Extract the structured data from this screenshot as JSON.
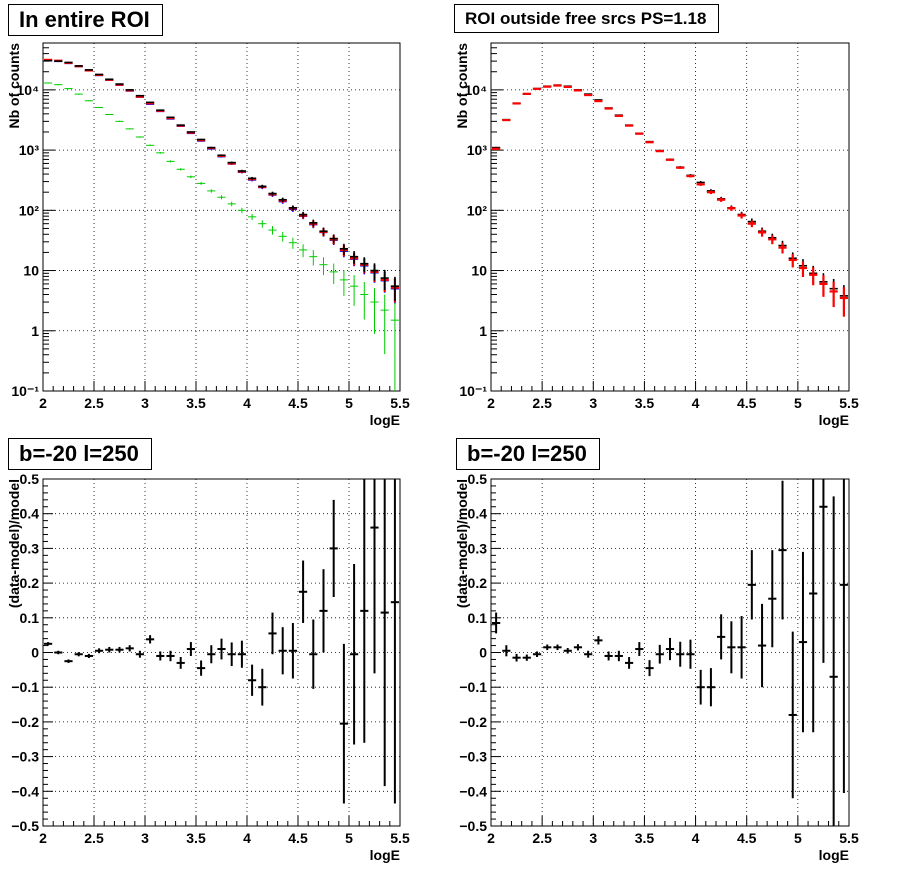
{
  "panels": [
    {
      "title": "In entire ROI",
      "ylabel": "Nb of counts",
      "xlabel": "logE",
      "xticks": [
        "2",
        "2.5",
        "3",
        "3.5",
        "4",
        "4.5",
        "5",
        "5.5"
      ],
      "yticks": [
        "10⁻¹",
        "1",
        "10",
        "10²",
        "10³",
        "10⁴"
      ]
    },
    {
      "title": "ROI outside free srcs PS=1.18",
      "ylabel": "Nb of counts",
      "xlabel": "logE",
      "xticks": [
        "2",
        "2.5",
        "3",
        "3.5",
        "4",
        "4.5",
        "5",
        "5.5"
      ],
      "yticks": [
        "10⁻¹",
        "1",
        "10",
        "10²",
        "10³",
        "10⁴"
      ]
    },
    {
      "title": "b=-20 l=250",
      "ylabel": "(data-model)/model",
      "xlabel": "logE",
      "xticks": [
        "2",
        "2.5",
        "3",
        "3.5",
        "4",
        "4.5",
        "5",
        "5.5"
      ],
      "yticks": [
        "−0.5",
        "−0.4",
        "−0.3",
        "−0.2",
        "−0.1",
        "0",
        "0.1",
        "0.2",
        "0.3",
        "0.4",
        "0.5"
      ]
    },
    {
      "title": "b=-20 l=250",
      "ylabel": "(data-model)/model",
      "xlabel": "logE",
      "xticks": [
        "2",
        "2.5",
        "3",
        "3.5",
        "4",
        "4.5",
        "5",
        "5.5"
      ],
      "yticks": [
        "−0.5",
        "−0.4",
        "−0.3",
        "−0.2",
        "−0.1",
        "0",
        "0.1",
        "0.2",
        "0.3",
        "0.4",
        "0.5"
      ]
    }
  ],
  "colors": {
    "data": "#000000",
    "model": "#ff0000",
    "total": "#0000ff",
    "component": "#00cc00"
  },
  "chart_data": [
    {
      "type": "scatter",
      "title": "In entire ROI",
      "xlabel": "logE",
      "ylabel": "Nb of counts",
      "xlim": [
        2,
        5.5
      ],
      "ylim": [
        0.1,
        60000
      ],
      "yscale": "log",
      "grid": true,
      "bin_width": 0.1,
      "x": [
        2.05,
        2.15,
        2.25,
        2.35,
        2.45,
        2.55,
        2.65,
        2.75,
        2.85,
        2.95,
        3.05,
        3.15,
        3.25,
        3.35,
        3.45,
        3.55,
        3.65,
        3.75,
        3.85,
        3.95,
        4.05,
        4.15,
        4.25,
        4.35,
        4.45,
        4.55,
        4.65,
        4.75,
        4.85,
        4.95,
        5.05,
        5.15,
        5.25,
        5.35,
        5.45
      ],
      "series": [
        {
          "values": [
            30500,
            30000,
            28500,
            25000,
            21500,
            18000,
            15000,
            12500,
            10000,
            8000,
            6200,
            4600,
            3500,
            2600,
            2000,
            1500,
            1100,
            820,
            620,
            450,
            340,
            250,
            190,
            150,
            110,
            85,
            62,
            45,
            34,
            23,
            17,
            13,
            10,
            7.5,
            5.5
          ]
        },
        {
          "values": [
            31500,
            30500,
            28000,
            24700,
            21000,
            17700,
            14700,
            12200,
            9800,
            7700,
            6000,
            4500,
            3400,
            2550,
            1950,
            1460,
            1080,
            800,
            600,
            440,
            330,
            245,
            185,
            145,
            108,
            82,
            60,
            44,
            33,
            22,
            16,
            12.5,
            9.5,
            7,
            5.2
          ]
        },
        {
          "values": [
            30500,
            29800,
            27600,
            24500,
            20800,
            17400,
            14500,
            12000,
            9600,
            7600,
            5800,
            4400,
            3300,
            2500,
            1900,
            1420,
            1050,
            780,
            590,
            430,
            320,
            240,
            180,
            140,
            104,
            80,
            58,
            43,
            32,
            21,
            15.5,
            12,
            9.2,
            6.8,
            5
          ]
        },
        {
          "values": [
            13000,
            12200,
            10500,
            8500,
            6600,
            5100,
            3900,
            3000,
            2250,
            1650,
            1200,
            900,
            650,
            480,
            360,
            280,
            210,
            165,
            128,
            100,
            78,
            60,
            47,
            37,
            29,
            22,
            17,
            12.5,
            9.5,
            7,
            5.5,
            4,
            3,
            2.2,
            1.5
          ]
        }
      ],
      "errors_rel": [
        0.01,
        0.01,
        0.01,
        0.01,
        0.01,
        0.01,
        0.01,
        0.01,
        0.01,
        0.012,
        0.013,
        0.015,
        0.017,
        0.02,
        0.022,
        0.026,
        0.03,
        0.035,
        0.04,
        0.047,
        0.054,
        0.063,
        0.073,
        0.083,
        0.095,
        0.11,
        0.13,
        0.15,
        0.17,
        0.21,
        0.24,
        0.28,
        0.32,
        0.37,
        0.43
      ]
    },
    {
      "type": "scatter",
      "title": "ROI outside free srcs PS=1.18",
      "xlabel": "logE",
      "ylabel": "Nb of counts",
      "xlim": [
        2,
        5.5
      ],
      "ylim": [
        0.1,
        60000
      ],
      "yscale": "log",
      "grid": true,
      "bin_width": 0.1,
      "x": [
        2.05,
        2.15,
        2.25,
        2.35,
        2.45,
        2.55,
        2.65,
        2.75,
        2.85,
        2.95,
        3.05,
        3.15,
        3.25,
        3.35,
        3.45,
        3.55,
        3.65,
        3.75,
        3.85,
        3.95,
        4.05,
        4.15,
        4.25,
        4.35,
        4.45,
        4.55,
        4.65,
        4.75,
        4.85,
        4.95,
        5.05,
        5.15,
        5.25,
        5.35,
        5.45
      ],
      "series": [
        {
          "values": [
            1100,
            3200,
            6000,
            8500,
            10500,
            11500,
            12000,
            11500,
            10000,
            8500,
            6800,
            5000,
            3800,
            2600,
            1900,
            1380,
            980,
            700,
            520,
            380,
            290,
            210,
            155,
            110,
            85,
            65,
            45,
            35,
            26,
            16,
            12,
            9,
            6.5,
            5,
            3.8
          ]
        },
        {
          "values": [
            1050,
            3150,
            5950,
            8600,
            10400,
            11300,
            11800,
            11200,
            9800,
            8200,
            6500,
            4900,
            3700,
            2550,
            1870,
            1350,
            960,
            690,
            510,
            370,
            270,
            200,
            150,
            108,
            82,
            60,
            43,
            33,
            24,
            15,
            11,
            8.5,
            6,
            4.5,
            3.5
          ]
        }
      ],
      "errors_rel": [
        0.03,
        0.018,
        0.013,
        0.011,
        0.01,
        0.01,
        0.01,
        0.01,
        0.01,
        0.011,
        0.012,
        0.014,
        0.016,
        0.02,
        0.023,
        0.027,
        0.032,
        0.038,
        0.044,
        0.051,
        0.059,
        0.069,
        0.08,
        0.095,
        0.11,
        0.125,
        0.15,
        0.17,
        0.2,
        0.25,
        0.29,
        0.33,
        0.39,
        0.45,
        0.51
      ]
    },
    {
      "type": "scatter",
      "title": "b=-20 l=250",
      "xlabel": "logE",
      "ylabel": "(data-model)/model",
      "xlim": [
        2,
        5.5
      ],
      "ylim": [
        -0.5,
        0.5
      ],
      "grid": true,
      "bin_width": 0.1,
      "x": [
        2.05,
        2.15,
        2.25,
        2.35,
        2.45,
        2.55,
        2.65,
        2.75,
        2.85,
        2.95,
        3.05,
        3.15,
        3.25,
        3.35,
        3.45,
        3.55,
        3.65,
        3.75,
        3.85,
        3.95,
        4.05,
        4.15,
        4.25,
        4.35,
        4.45,
        4.55,
        4.65,
        4.75,
        4.85,
        4.95,
        5.05,
        5.15,
        5.25,
        5.35,
        5.45
      ],
      "values": [
        0.025,
        0.0,
        -0.025,
        -0.005,
        -0.01,
        0.005,
        0.008,
        0.008,
        0.012,
        -0.005,
        0.038,
        -0.01,
        -0.01,
        -0.03,
        0.01,
        -0.045,
        -0.005,
        0.01,
        -0.005,
        -0.005,
        -0.08,
        -0.1,
        0.055,
        0.005,
        0.005,
        0.175,
        -0.005,
        0.12,
        0.3,
        -0.205,
        -0.005,
        0.12,
        0.36,
        0.115,
        0.145
      ],
      "errors": [
        0.005,
        0.005,
        0.005,
        0.006,
        0.006,
        0.007,
        0.008,
        0.008,
        0.009,
        0.01,
        0.012,
        0.013,
        0.015,
        0.017,
        0.02,
        0.022,
        0.026,
        0.03,
        0.034,
        0.039,
        0.045,
        0.053,
        0.06,
        0.068,
        0.08,
        0.09,
        0.1,
        0.12,
        0.14,
        0.23,
        0.26,
        0.38,
        0.42,
        0.5,
        0.58
      ]
    },
    {
      "type": "scatter",
      "title": "b=-20 l=250",
      "xlabel": "logE",
      "ylabel": "(data-model)/model",
      "xlim": [
        2,
        5.5
      ],
      "ylim": [
        -0.5,
        0.5
      ],
      "grid": true,
      "bin_width": 0.1,
      "x": [
        2.05,
        2.15,
        2.25,
        2.35,
        2.45,
        2.55,
        2.65,
        2.75,
        2.85,
        2.95,
        3.05,
        3.15,
        3.25,
        3.35,
        3.45,
        3.55,
        3.65,
        3.75,
        3.85,
        3.95,
        4.05,
        4.15,
        4.25,
        4.35,
        4.45,
        4.55,
        4.65,
        4.75,
        4.85,
        4.95,
        5.05,
        5.15,
        5.25,
        5.35,
        5.45
      ],
      "values": [
        0.085,
        0.005,
        -0.015,
        -0.015,
        -0.005,
        0.015,
        0.015,
        0.005,
        0.015,
        -0.005,
        0.035,
        -0.01,
        -0.01,
        -0.03,
        0.01,
        -0.045,
        -0.005,
        0.01,
        -0.005,
        -0.005,
        -0.1,
        -0.1,
        0.045,
        0.015,
        0.015,
        0.195,
        0.02,
        0.155,
        0.295,
        -0.18,
        0.03,
        0.17,
        0.42,
        -0.07,
        0.195
      ],
      "errors": [
        0.03,
        0.016,
        0.011,
        0.009,
        0.008,
        0.008,
        0.008,
        0.008,
        0.009,
        0.01,
        0.012,
        0.013,
        0.015,
        0.017,
        0.02,
        0.023,
        0.027,
        0.032,
        0.036,
        0.042,
        0.05,
        0.055,
        0.065,
        0.075,
        0.09,
        0.1,
        0.12,
        0.14,
        0.2,
        0.24,
        0.26,
        0.4,
        0.45,
        0.52,
        0.6
      ]
    }
  ]
}
